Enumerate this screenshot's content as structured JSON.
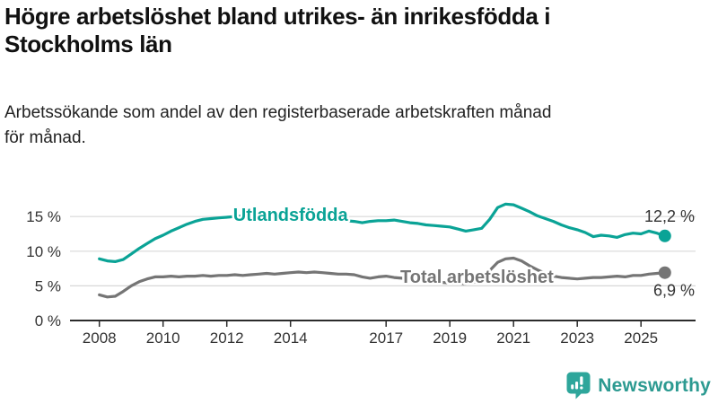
{
  "title": {
    "line1": "Högre arbetslöshet bland utrikes- än inrikesfödda i",
    "line2": "Stockholms län"
  },
  "subtitle": {
    "line1": "Arbetssökande som andel av den registerbaserade arbetskraften månad",
    "line2": "för månad."
  },
  "chart_data": {
    "type": "line",
    "title": "Högre arbetslöshet bland utrikes- än inrikesfödda i Stockholms län",
    "subtitle": "Arbetssökande som andel av den registerbaserade arbetskraften månad för månad.",
    "x_unit": "year (quarterly sampled monthly series)",
    "x_start": 2008,
    "x_step": 0.25,
    "x_ticks": [
      2008,
      2010,
      2012,
      2014,
      2017,
      2019,
      2021,
      2023,
      2025
    ],
    "y_ticks": [
      0,
      5,
      10,
      15
    ],
    "y_tick_suffix": " %",
    "ylim": [
      0,
      17.5
    ],
    "xlim": [
      2007,
      2026.8
    ],
    "grid": "horizontal",
    "legend_position": "inline-labels-on-lines",
    "series": [
      {
        "name": "Utlandsfödda",
        "color": "#0aa396",
        "label_x": 2014.0,
        "label_y": 15.3,
        "end_label": "12,2 %",
        "end_label_pos": "above",
        "end_value": 12.2,
        "values": [
          8.9,
          8.6,
          8.5,
          8.8,
          9.6,
          10.4,
          11.1,
          11.8,
          12.3,
          12.9,
          13.4,
          13.9,
          14.3,
          14.6,
          14.7,
          14.8,
          14.9,
          15.0,
          15.1,
          15.0,
          15.1,
          15.2,
          15.1,
          15.0,
          15.0,
          14.9,
          14.8,
          14.7,
          14.6,
          14.5,
          14.5,
          14.4,
          14.3,
          14.1,
          14.3,
          14.4,
          14.4,
          14.5,
          14.3,
          14.1,
          14.0,
          13.8,
          13.7,
          13.6,
          13.5,
          13.2,
          12.9,
          13.1,
          13.3,
          14.6,
          16.3,
          16.8,
          16.7,
          16.2,
          15.7,
          15.1,
          14.7,
          14.3,
          13.8,
          13.4,
          13.1,
          12.7,
          12.1,
          12.3,
          12.2,
          12.0,
          12.4,
          12.6,
          12.5,
          12.9,
          12.6,
          12.2
        ]
      },
      {
        "name": "Total arbetslöshet",
        "color": "#757575",
        "label_x": 2019.85,
        "label_y": 6.35,
        "end_label": "6,9 %",
        "end_label_pos": "below",
        "end_value": 6.9,
        "values": [
          3.7,
          3.4,
          3.5,
          4.2,
          5.0,
          5.6,
          6.0,
          6.3,
          6.3,
          6.4,
          6.3,
          6.4,
          6.4,
          6.5,
          6.4,
          6.5,
          6.5,
          6.6,
          6.5,
          6.6,
          6.7,
          6.8,
          6.7,
          6.8,
          6.9,
          7.0,
          6.9,
          7.0,
          6.9,
          6.8,
          6.7,
          6.7,
          6.6,
          6.3,
          6.1,
          6.3,
          6.4,
          6.2,
          6.1,
          6.0,
          5.9,
          5.8,
          5.6,
          5.5,
          5.4,
          5.4,
          5.3,
          5.5,
          5.8,
          7.2,
          8.4,
          8.9,
          9.0,
          8.6,
          7.9,
          7.3,
          6.8,
          6.4,
          6.2,
          6.1,
          6.0,
          6.1,
          6.2,
          6.2,
          6.3,
          6.4,
          6.3,
          6.5,
          6.5,
          6.7,
          6.8,
          6.9
        ]
      }
    ]
  },
  "branding": {
    "name": "Newsworthy",
    "icon": "newsworthy-speech-bubble-chart-icon",
    "icon_color": "#2ea69b",
    "text_color": "#2c9a91"
  }
}
